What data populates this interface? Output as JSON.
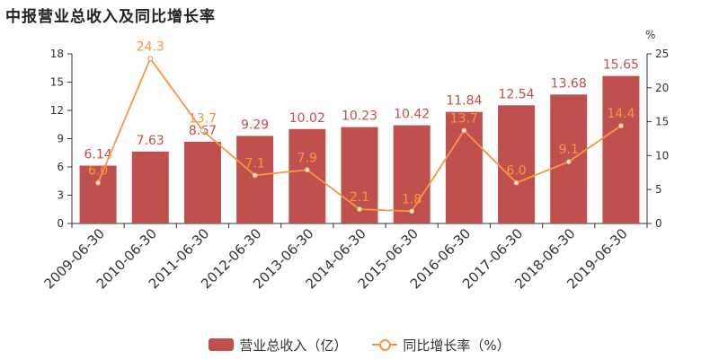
{
  "chart_data": {
    "type": "bar+line",
    "title": "中报营业总收入及同比增长率",
    "categories": [
      "2009-06-30",
      "2010-06-30",
      "2011-06-30",
      "2012-06-30",
      "2013-06-30",
      "2014-06-30",
      "2015-06-30",
      "2016-06-30",
      "2017-06-30",
      "2018-06-30",
      "2019-06-30"
    ],
    "series": [
      {
        "name": "营业总收入（亿）",
        "type": "bar",
        "axis": "left",
        "values": [
          6.14,
          7.63,
          8.67,
          9.29,
          10.02,
          10.23,
          10.42,
          11.84,
          12.54,
          13.68,
          15.65
        ],
        "labels": [
          "6.14",
          "7.63",
          "8.67",
          "9.29",
          "10.02",
          "10.23",
          "10.42",
          "11.84",
          "12.54",
          "13.68",
          "15.65"
        ]
      },
      {
        "name": "同比增长率（%）",
        "type": "line",
        "axis": "right",
        "values": [
          6.0,
          24.3,
          13.7,
          7.1,
          7.9,
          2.1,
          1.8,
          13.7,
          6.0,
          9.1,
          14.4
        ],
        "labels": [
          "6.0",
          "24.3",
          "13.7",
          "7.1",
          "7.9",
          "2.1",
          "1.8",
          "13.7",
          "6.0",
          "9.1",
          "14.4"
        ]
      }
    ],
    "y_left": {
      "ylim": [
        0,
        18
      ],
      "ticks": [
        "0",
        "3",
        "6",
        "9",
        "12",
        "15",
        "18"
      ]
    },
    "y_right": {
      "ylim": [
        0,
        25
      ],
      "ticks": [
        "0",
        "5",
        "10",
        "15",
        "20",
        "25"
      ],
      "unit": "%"
    },
    "grid": false,
    "legend": "bottom-center",
    "colors": {
      "bar": "#c0504d",
      "bar_label": "#c0504d",
      "line": "#f79646",
      "line_label": "#f79646"
    }
  }
}
